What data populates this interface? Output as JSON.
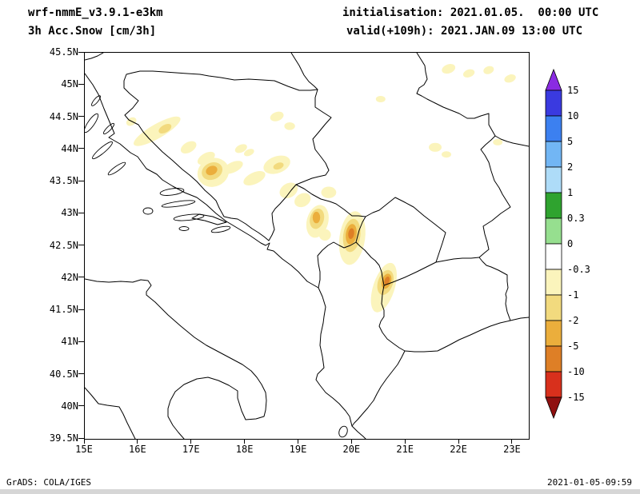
{
  "header": {
    "model": "wrf-nmmE_v3.9.1-e3km",
    "product": "3h Acc.Snow [cm/3h]",
    "init": "initialisation: 2021.01.05.  00:00 UTC",
    "valid": "valid(+109h): 2021.JAN.09 13:00 UTC"
  },
  "footer": {
    "grads_credit": "GrADS: COLA/IGES",
    "timestamp": "2021-01-05-09:59"
  },
  "chart_data": {
    "type": "heatmap",
    "title": "3h Acc.Snow [cm/3h]",
    "subtitle": "wrf-nmmE_v3.9.1-e3km",
    "units": "cm/3h",
    "grid": false,
    "domain": {
      "lon_min": 15,
      "lon_max": 23.3,
      "lat_min": 39.5,
      "lat_max": 45.5
    },
    "x_axis": {
      "label": "longitude",
      "ticks": [
        {
          "label": "15E",
          "value": 15
        },
        {
          "label": "16E",
          "value": 16
        },
        {
          "label": "17E",
          "value": 17
        },
        {
          "label": "18E",
          "value": 18
        },
        {
          "label": "19E",
          "value": 19
        },
        {
          "label": "20E",
          "value": 20
        },
        {
          "label": "21E",
          "value": 21
        },
        {
          "label": "22E",
          "value": 22
        },
        {
          "label": "23E",
          "value": 23
        }
      ]
    },
    "y_axis": {
      "label": "latitude",
      "ticks": [
        {
          "label": "45.5N",
          "value": 45.5
        },
        {
          "label": "45N",
          "value": 45
        },
        {
          "label": "44.5N",
          "value": 44.5
        },
        {
          "label": "44N",
          "value": 44
        },
        {
          "label": "43.5N",
          "value": 43.5
        },
        {
          "label": "43N",
          "value": 43
        },
        {
          "label": "42.5N",
          "value": 42.5
        },
        {
          "label": "42N",
          "value": 42
        },
        {
          "label": "41.5N",
          "value": 41.5
        },
        {
          "label": "41N",
          "value": 41
        },
        {
          "label": "40.5N",
          "value": 40.5
        },
        {
          "label": "40N",
          "value": 40
        },
        {
          "label": "39.5N",
          "value": 39.5
        }
      ]
    },
    "colorbar": {
      "position": "right",
      "labels": [
        "15",
        "10",
        "5",
        "2",
        "1",
        "0.3",
        "0",
        "-0.3",
        "-1",
        "-2",
        "-5",
        "-10",
        "-15"
      ],
      "levels": [
        15,
        10,
        5,
        2,
        1,
        0.3,
        0,
        -0.3,
        -1,
        -2,
        -5,
        -10,
        -15
      ],
      "colors": [
        "#8A2BE2",
        "#3A3AE0",
        "#3C80F0",
        "#72B6F4",
        "#AEDCF8",
        "#2FA32F",
        "#96DF8F",
        "#FFFFFF",
        "#FBF4BC",
        "#F2DA7E",
        "#EBAE3C",
        "#DE7F26",
        "#D8301C",
        "#8F1010"
      ],
      "arrow_top": true,
      "arrow_bottom": true
    },
    "palette": {
      "light": "#FBF4BC",
      "moderate": "#F2DA7E",
      "strong": "#EBAE3C",
      "intense": "#DE7F26"
    },
    "snow_areas": [
      {
        "lon": 16.35,
        "lat": 44.28,
        "rx": 0.5,
        "ry": 0.11,
        "rot": -30,
        "level": "light"
      },
      {
        "lon": 16.5,
        "lat": 44.32,
        "rx": 0.13,
        "ry": 0.06,
        "rot": -30,
        "level": "moderate"
      },
      {
        "lon": 15.87,
        "lat": 44.43,
        "rx": 0.1,
        "ry": 0.06,
        "rot": -30,
        "level": "light"
      },
      {
        "lon": 16.94,
        "lat": 44.03,
        "rx": 0.16,
        "ry": 0.08,
        "rot": -30,
        "level": "light"
      },
      {
        "lon": 17.27,
        "lat": 43.86,
        "rx": 0.18,
        "ry": 0.08,
        "rot": -30,
        "level": "light"
      },
      {
        "lon": 17.92,
        "lat": 44.01,
        "rx": 0.12,
        "ry": 0.06,
        "rot": -25,
        "level": "light"
      },
      {
        "lon": 17.4,
        "lat": 43.64,
        "rx": 0.3,
        "ry": 0.22,
        "rot": -25,
        "level": "light"
      },
      {
        "lon": 17.38,
        "lat": 43.66,
        "rx": 0.2,
        "ry": 0.13,
        "rot": -25,
        "level": "moderate"
      },
      {
        "lon": 17.37,
        "lat": 43.67,
        "rx": 0.11,
        "ry": 0.07,
        "rot": -25,
        "level": "strong"
      },
      {
        "lon": 17.77,
        "lat": 43.72,
        "rx": 0.2,
        "ry": 0.08,
        "rot": -25,
        "level": "light"
      },
      {
        "lon": 18.17,
        "lat": 43.55,
        "rx": 0.22,
        "ry": 0.09,
        "rot": -25,
        "level": "light"
      },
      {
        "lon": 18.59,
        "lat": 43.76,
        "rx": 0.26,
        "ry": 0.13,
        "rot": -20,
        "level": "light"
      },
      {
        "lon": 18.62,
        "lat": 43.74,
        "rx": 0.1,
        "ry": 0.05,
        "rot": -20,
        "level": "moderate"
      },
      {
        "lon": 18.59,
        "lat": 44.51,
        "rx": 0.13,
        "ry": 0.07,
        "rot": -20,
        "level": "light"
      },
      {
        "lon": 18.83,
        "lat": 44.36,
        "rx": 0.1,
        "ry": 0.06,
        "rot": 0,
        "level": "light"
      },
      {
        "lon": 18.07,
        "lat": 43.95,
        "rx": 0.1,
        "ry": 0.05,
        "rot": -25,
        "level": "light"
      },
      {
        "lon": 18.81,
        "lat": 43.36,
        "rx": 0.18,
        "ry": 0.11,
        "rot": -30,
        "level": "light"
      },
      {
        "lon": 19.07,
        "lat": 43.21,
        "rx": 0.16,
        "ry": 0.1,
        "rot": -30,
        "level": "light"
      },
      {
        "lon": 19.56,
        "lat": 43.33,
        "rx": 0.14,
        "ry": 0.09,
        "rot": 0,
        "level": "light"
      },
      {
        "lon": 19.35,
        "lat": 42.88,
        "rx": 0.2,
        "ry": 0.26,
        "rot": 15,
        "level": "light"
      },
      {
        "lon": 19.34,
        "lat": 42.92,
        "rx": 0.13,
        "ry": 0.16,
        "rot": 15,
        "level": "moderate"
      },
      {
        "lon": 19.33,
        "lat": 42.94,
        "rx": 0.07,
        "ry": 0.09,
        "rot": 0,
        "level": "strong"
      },
      {
        "lon": 19.49,
        "lat": 42.67,
        "rx": 0.11,
        "ry": 0.09,
        "rot": 0,
        "level": "light"
      },
      {
        "lon": 20.0,
        "lat": 42.62,
        "rx": 0.24,
        "ry": 0.42,
        "rot": 8,
        "level": "light"
      },
      {
        "lon": 19.99,
        "lat": 42.66,
        "rx": 0.16,
        "ry": 0.26,
        "rot": 8,
        "level": "moderate"
      },
      {
        "lon": 19.98,
        "lat": 42.68,
        "rx": 0.1,
        "ry": 0.16,
        "rot": 8,
        "level": "strong"
      },
      {
        "lon": 19.98,
        "lat": 42.69,
        "rx": 0.055,
        "ry": 0.085,
        "rot": 8,
        "level": "intense"
      },
      {
        "lon": 20.59,
        "lat": 41.85,
        "rx": 0.2,
        "ry": 0.4,
        "rot": 18,
        "level": "light"
      },
      {
        "lon": 20.62,
        "lat": 41.93,
        "rx": 0.14,
        "ry": 0.2,
        "rot": 18,
        "level": "moderate"
      },
      {
        "lon": 20.64,
        "lat": 41.95,
        "rx": 0.085,
        "ry": 0.12,
        "rot": 18,
        "level": "strong"
      },
      {
        "lon": 20.65,
        "lat": 41.96,
        "rx": 0.045,
        "ry": 0.065,
        "rot": 18,
        "level": "intense"
      },
      {
        "lon": 21.8,
        "lat": 45.25,
        "rx": 0.13,
        "ry": 0.07,
        "rot": -20,
        "level": "light"
      },
      {
        "lon": 22.18,
        "lat": 45.18,
        "rx": 0.11,
        "ry": 0.06,
        "rot": -20,
        "level": "light"
      },
      {
        "lon": 22.55,
        "lat": 45.23,
        "rx": 0.1,
        "ry": 0.06,
        "rot": -20,
        "level": "light"
      },
      {
        "lon": 22.95,
        "lat": 45.1,
        "rx": 0.11,
        "ry": 0.06,
        "rot": -20,
        "level": "light"
      },
      {
        "lon": 21.55,
        "lat": 44.03,
        "rx": 0.12,
        "ry": 0.07,
        "rot": 0,
        "level": "light"
      },
      {
        "lon": 21.76,
        "lat": 43.92,
        "rx": 0.09,
        "ry": 0.05,
        "rot": 0,
        "level": "light"
      },
      {
        "lon": 22.72,
        "lat": 44.11,
        "rx": 0.09,
        "ry": 0.05,
        "rot": 0,
        "level": "light"
      },
      {
        "lon": 20.53,
        "lat": 44.78,
        "rx": 0.09,
        "ry": 0.05,
        "rot": 0,
        "level": "light"
      }
    ]
  }
}
